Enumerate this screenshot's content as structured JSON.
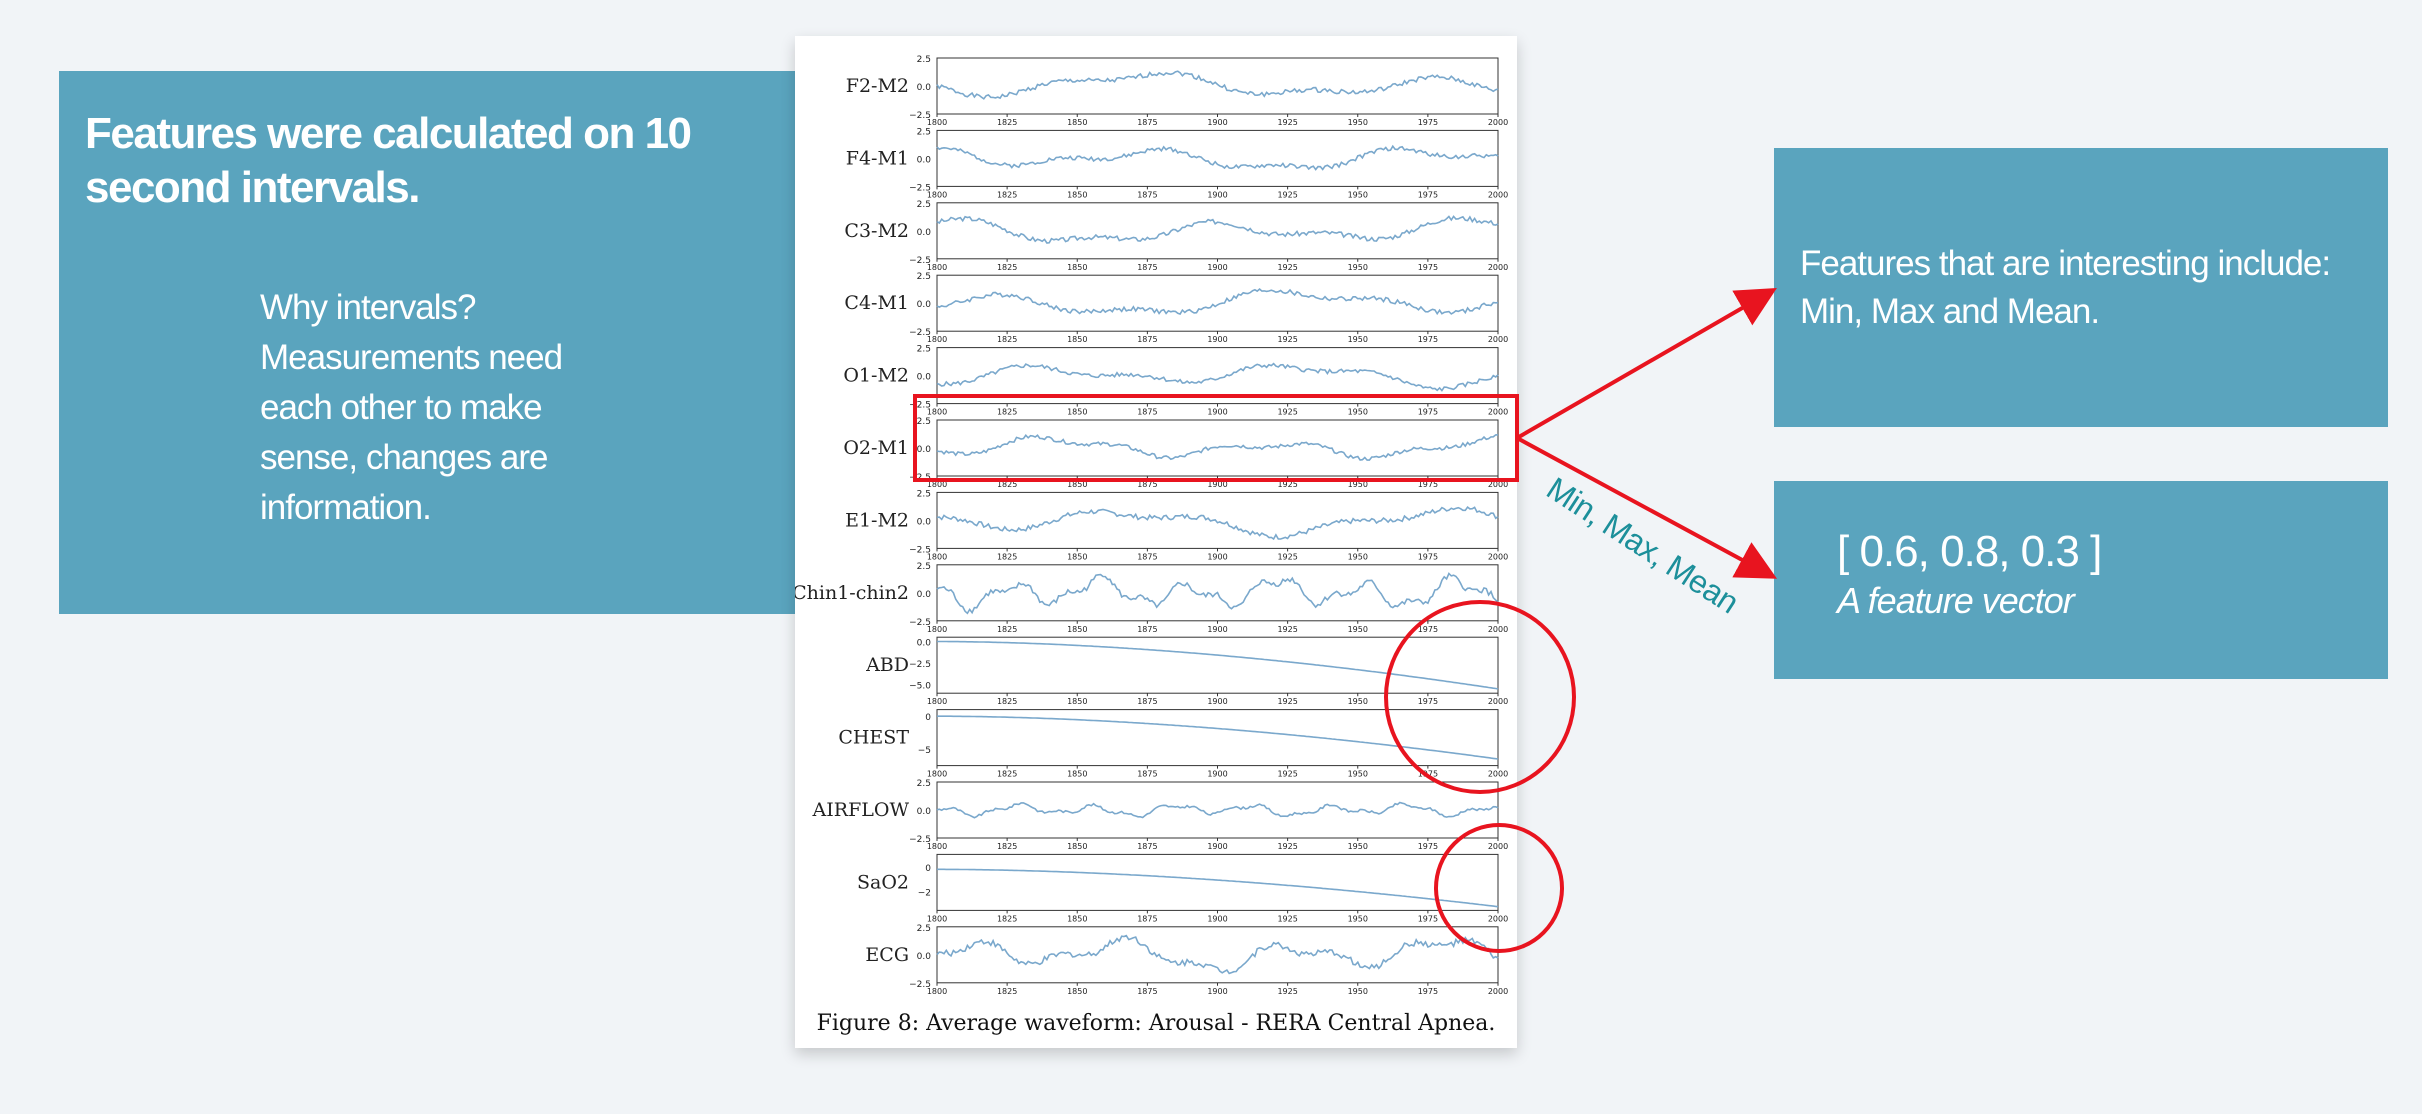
{
  "left_panel": {
    "title": "Features were calculated on 10 second intervals.",
    "body_lines": [
      "Why intervals?",
      "Measurements need",
      "each other to make",
      "sense, changes are",
      "information."
    ]
  },
  "right_top": {
    "lines": [
      "Features that are interesting include:",
      "Min, Max and Mean."
    ]
  },
  "right_bottom": {
    "vector": "[ 0.6, 0.8, 0.3 ]",
    "caption": "A feature vector"
  },
  "annotation": {
    "label": "Min, Max, Mean",
    "highlight_color": "#e8141f",
    "text_color": "#1c8f9a"
  },
  "figure": {
    "caption": "Figure 8: Average waveform: Arousal - RERA Central Apnea.",
    "line_color": "#7aa8cc"
  },
  "chart_data": {
    "type": "line",
    "x_ticks": [
      "1800",
      "1825",
      "1850",
      "1875",
      "1900",
      "1925",
      "1950",
      "1975",
      "2000"
    ],
    "xlim": [
      1800,
      2000
    ],
    "series": [
      {
        "name": "F2-M2",
        "kind": "wave",
        "ylim": [
          -2.5,
          2.5
        ],
        "yticks": [
          "2.5",
          "0.0",
          "−2.5"
        ],
        "amp": 1.2,
        "freq": 12,
        "seed": 1
      },
      {
        "name": "F4-M1",
        "kind": "wave",
        "ylim": [
          -2.5,
          2.5
        ],
        "yticks": [
          "2.5",
          "0.0",
          "−2.5"
        ],
        "amp": 1.1,
        "freq": 14,
        "seed": 2
      },
      {
        "name": "C3-M2",
        "kind": "wave",
        "ylim": [
          -2.5,
          2.5
        ],
        "yticks": [
          "2.5",
          "0.0",
          "−2.5"
        ],
        "amp": 1.2,
        "freq": 13,
        "seed": 3
      },
      {
        "name": "C4-M1",
        "kind": "wave",
        "ylim": [
          -2.5,
          2.5
        ],
        "yticks": [
          "2.5",
          "0.0",
          "−2.5"
        ],
        "amp": 1.2,
        "freq": 12,
        "seed": 4
      },
      {
        "name": "O1-M2",
        "kind": "wave",
        "ylim": [
          -2.5,
          2.5
        ],
        "yticks": [
          "2.5",
          "0.0",
          "−2.5"
        ],
        "amp": 1.1,
        "freq": 13,
        "seed": 5
      },
      {
        "name": "O2-M1",
        "kind": "wave",
        "ylim": [
          -2.5,
          2.5
        ],
        "yticks": [
          "2.5",
          "0.0",
          "−2.5"
        ],
        "amp": 1.0,
        "freq": 16,
        "seed": 6
      },
      {
        "name": "E1-M2",
        "kind": "wave",
        "ylim": [
          -2.5,
          2.5
        ],
        "yticks": [
          "2.5",
          "0.0",
          "−2.5"
        ],
        "amp": 1.3,
        "freq": 12,
        "seed": 7
      },
      {
        "name": "Chin1-chin2",
        "kind": "wave",
        "ylim": [
          -2.5,
          2.5
        ],
        "yticks": [
          "2.5",
          "0.0",
          "−2.5"
        ],
        "amp": 1.5,
        "freq": 40,
        "seed": 8
      },
      {
        "name": "ABD",
        "kind": "trend",
        "ylim": [
          -6,
          0.5
        ],
        "yticks": [
          "0.0",
          "−2.5",
          "−5.0"
        ],
        "start": 0,
        "end": -5.5
      },
      {
        "name": "CHEST",
        "kind": "trend",
        "ylim": [
          -7.5,
          1
        ],
        "yticks": [
          "0",
          "−5"
        ],
        "start": 0,
        "end": -6.5
      },
      {
        "name": "AIRFLOW",
        "kind": "wave",
        "ylim": [
          -2.5,
          2.5
        ],
        "yticks": [
          "2.5",
          "0.0",
          "−2.5"
        ],
        "amp": 0.6,
        "freq": 45,
        "seed": 9
      },
      {
        "name": "SaO2",
        "kind": "trend",
        "ylim": [
          -3.5,
          1
        ],
        "yticks": [
          "0",
          "−2"
        ],
        "start": -0.2,
        "end": -3.2
      },
      {
        "name": "ECG",
        "kind": "wave",
        "ylim": [
          -2.5,
          2.5
        ],
        "yticks": [
          "2.5",
          "0.0",
          "−2.5"
        ],
        "amp": 1.6,
        "freq": 22,
        "seed": 10
      }
    ]
  }
}
